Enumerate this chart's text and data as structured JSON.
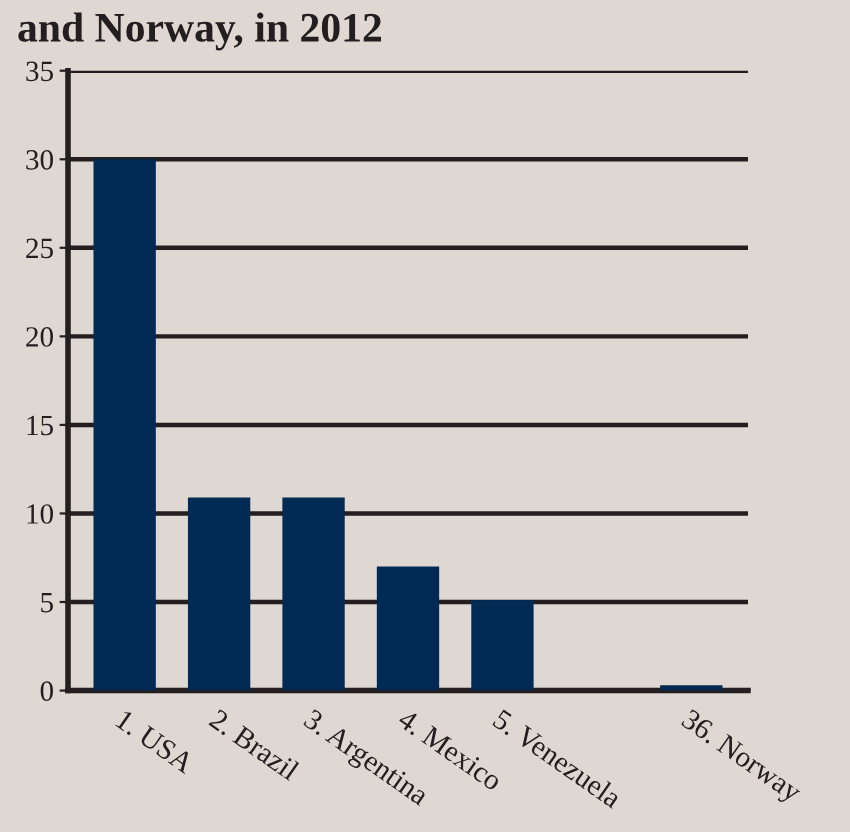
{
  "chart_data": {
    "type": "bar",
    "title": "and Norway, in 2012",
    "categories": [
      "1. USA",
      "2. Brazil",
      "3. Argentina",
      "4. Mexico",
      "5. Venezuela",
      null,
      "36. Norway"
    ],
    "values": [
      30,
      10.9,
      10.9,
      7,
      5.1,
      null,
      0.3
    ],
    "color": "#012a55",
    "ylim": [
      0,
      35
    ],
    "yticks": [
      0,
      5,
      10,
      15,
      20,
      25,
      30,
      35
    ],
    "grid": "y",
    "legend": false
  }
}
